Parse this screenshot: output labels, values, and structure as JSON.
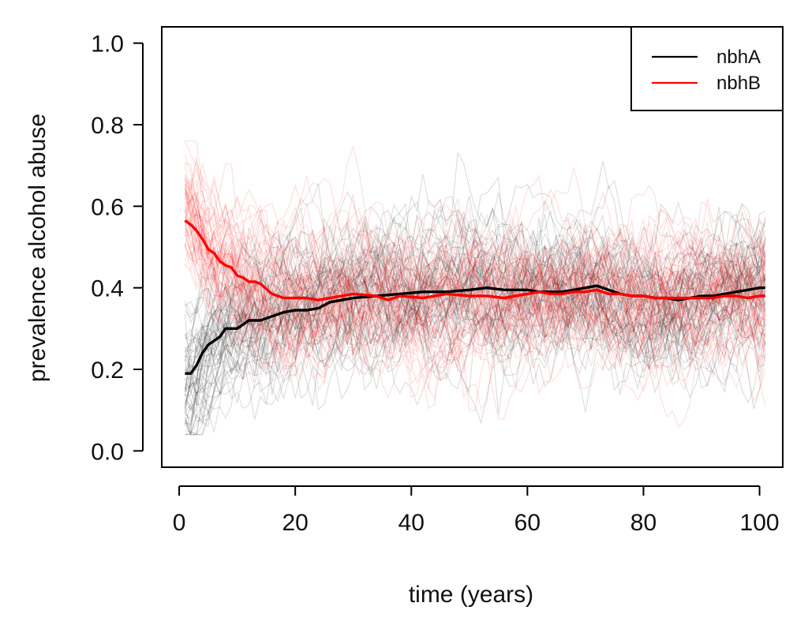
{
  "chart_data": {
    "type": "line",
    "title": "",
    "xlabel": "time (years)",
    "ylabel": "prevalence alcohol abuse",
    "xlim": [
      -3,
      104
    ],
    "ylim": [
      -0.04,
      1.04
    ],
    "xticks": [
      0,
      20,
      40,
      60,
      80,
      100
    ],
    "xtick_labels": [
      "0",
      "20",
      "40",
      "60",
      "80",
      "100"
    ],
    "yticks": [
      0.0,
      0.2,
      0.4,
      0.6,
      0.8,
      1.0
    ],
    "ytick_labels": [
      "0.0",
      "0.2",
      "0.4",
      "0.6",
      "0.8",
      "1.0"
    ],
    "grid": false,
    "legend_position": "top-right",
    "series": [
      {
        "name": "nbhA",
        "color": "#000000",
        "x": [
          1,
          2,
          3,
          4,
          5,
          6,
          7,
          8,
          9,
          10,
          11,
          12,
          13,
          14,
          16,
          18,
          20,
          22,
          24,
          26,
          28,
          30,
          34,
          38,
          42,
          46,
          50,
          53,
          56,
          60,
          62,
          64,
          66,
          68,
          70,
          72,
          74,
          76,
          78,
          80,
          82,
          84,
          86,
          88,
          90,
          92,
          94,
          96,
          98,
          100,
          101
        ],
        "values": [
          0.19,
          0.19,
          0.21,
          0.24,
          0.26,
          0.27,
          0.28,
          0.3,
          0.3,
          0.3,
          0.31,
          0.32,
          0.32,
          0.32,
          0.33,
          0.34,
          0.345,
          0.345,
          0.35,
          0.365,
          0.37,
          0.375,
          0.38,
          0.385,
          0.39,
          0.39,
          0.395,
          0.4,
          0.395,
          0.395,
          0.39,
          0.39,
          0.39,
          0.395,
          0.4,
          0.405,
          0.395,
          0.385,
          0.38,
          0.38,
          0.375,
          0.375,
          0.37,
          0.375,
          0.38,
          0.38,
          0.385,
          0.39,
          0.395,
          0.4,
          0.4
        ]
      },
      {
        "name": "nbhB",
        "color": "#ff0000",
        "x": [
          1,
          2,
          3,
          4,
          5,
          6,
          7,
          8,
          9,
          10,
          11,
          12,
          13,
          14,
          16,
          18,
          20,
          22,
          24,
          26,
          28,
          30,
          34,
          36,
          38,
          42,
          46,
          50,
          53,
          56,
          60,
          62,
          64,
          66,
          68,
          70,
          72,
          74,
          76,
          78,
          80,
          82,
          84,
          86,
          88,
          90,
          92,
          94,
          96,
          98,
          100,
          101
        ],
        "values": [
          0.565,
          0.555,
          0.54,
          0.52,
          0.495,
          0.485,
          0.465,
          0.455,
          0.45,
          0.43,
          0.425,
          0.415,
          0.415,
          0.41,
          0.385,
          0.375,
          0.375,
          0.375,
          0.37,
          0.375,
          0.38,
          0.385,
          0.38,
          0.37,
          0.38,
          0.375,
          0.385,
          0.38,
          0.38,
          0.375,
          0.385,
          0.39,
          0.385,
          0.385,
          0.39,
          0.39,
          0.395,
          0.385,
          0.385,
          0.38,
          0.38,
          0.375,
          0.375,
          0.375,
          0.375,
          0.375,
          0.375,
          0.38,
          0.38,
          0.375,
          0.38,
          0.38
        ]
      }
    ],
    "background_simulations": [
      {
        "group": "nbhA",
        "color": "#000000",
        "count": 60,
        "start_range": [
          0.05,
          0.33
        ],
        "band_sd": 0.085
      },
      {
        "group": "nbhB",
        "color": "#ff0000",
        "count": 60,
        "start_range": [
          0.48,
          0.74
        ],
        "band_sd": 0.085
      }
    ]
  }
}
